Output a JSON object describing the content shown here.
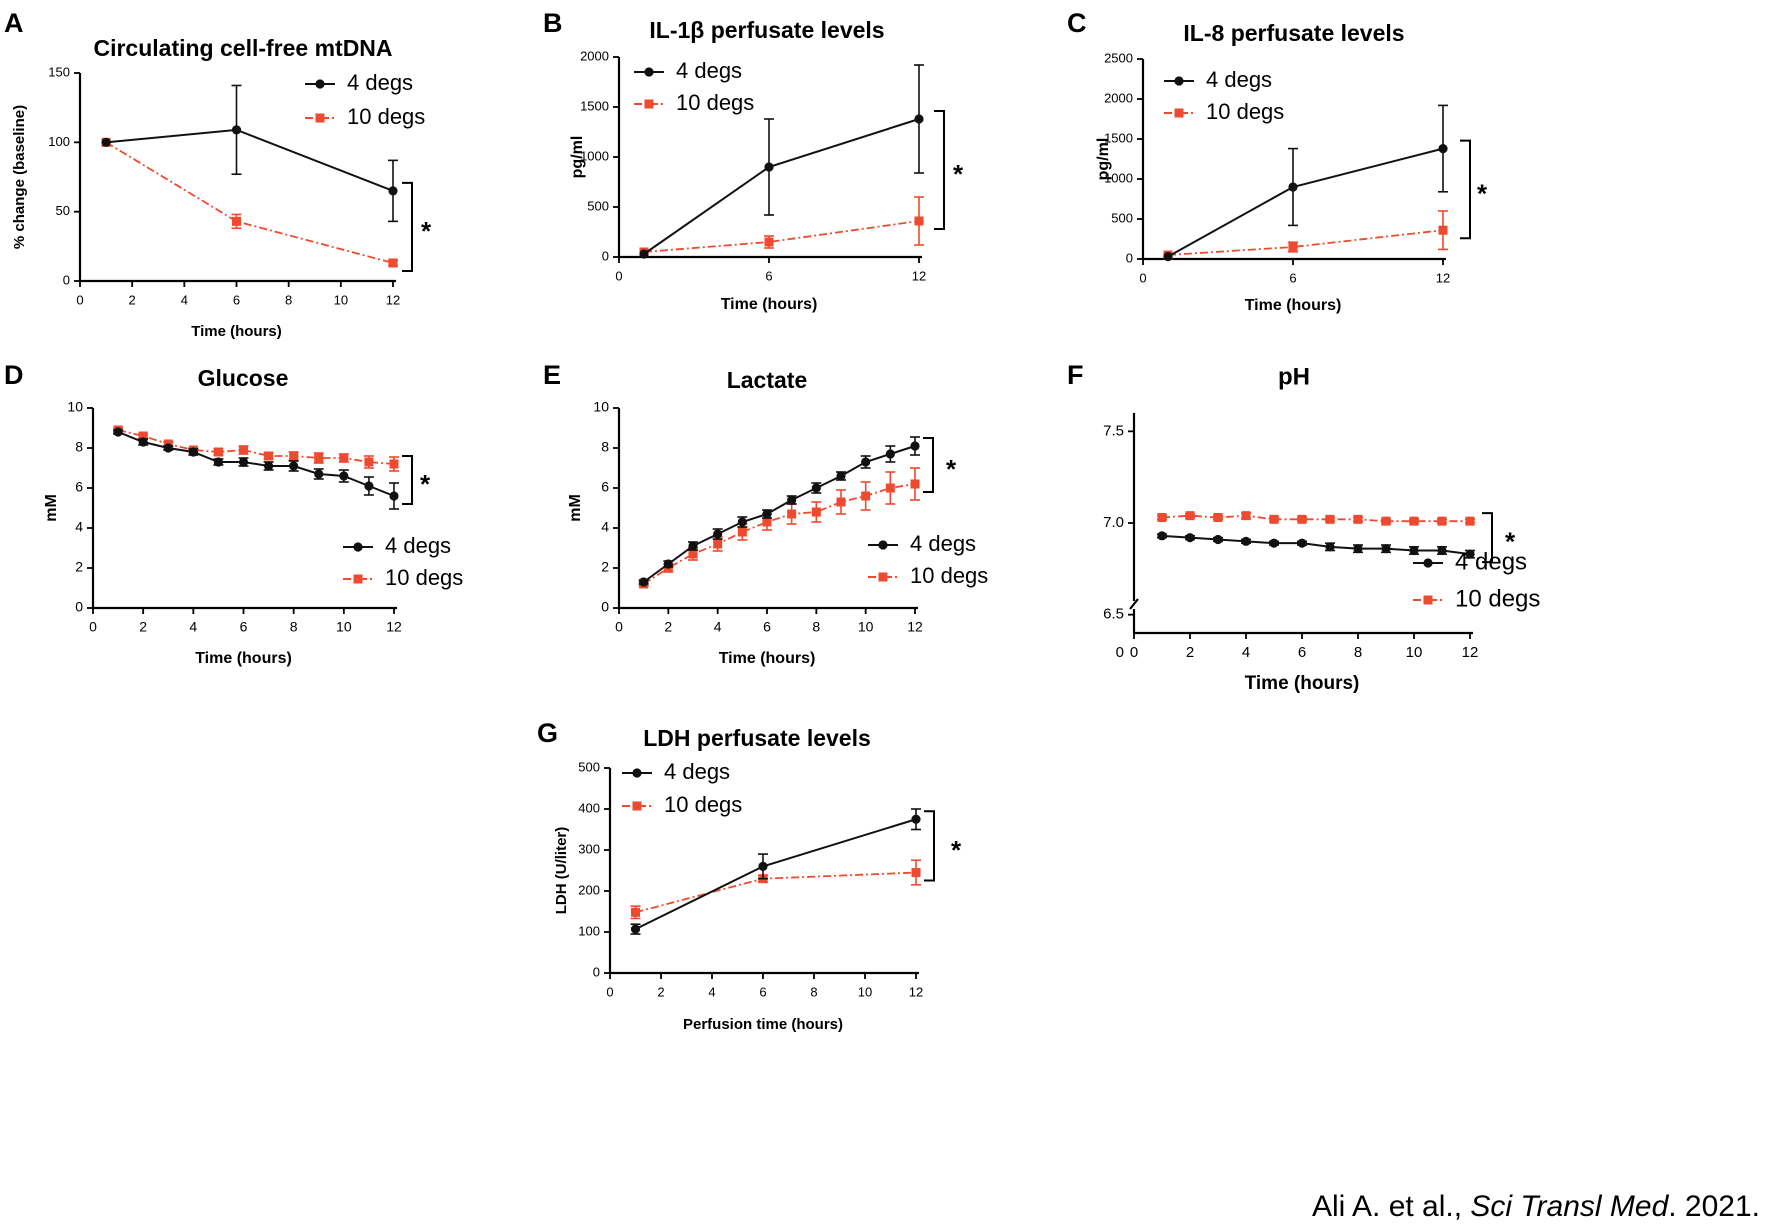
{
  "colors": {
    "series1": "#111111",
    "series2": "#ee4a2f",
    "axis": "#000000"
  },
  "citation": {
    "authors": "Ali A. et al., ",
    "journal": "Sci Transl Med",
    "year": ". 2021."
  },
  "chart_data": [
    {
      "panel": "A",
      "type": "line",
      "title": "Circulating cell-free mtDNA",
      "xlabel": "Time (hours)",
      "ylabel": "% change (baseline)",
      "xlim": [
        0,
        12
      ],
      "ylim": [
        0,
        150
      ],
      "xticks": [
        0,
        2,
        4,
        6,
        8,
        10,
        12
      ],
      "yticks": [
        0,
        50,
        100,
        150
      ],
      "legend": "top-right",
      "significance": "*",
      "series": [
        {
          "name": "4 degs",
          "x": [
            1,
            6,
            12
          ],
          "y": [
            100,
            109,
            65
          ],
          "err": [
            0,
            32,
            22
          ]
        },
        {
          "name": "10 degs",
          "x": [
            1,
            6,
            12
          ],
          "y": [
            100,
            43,
            13
          ],
          "err": [
            0,
            5,
            2
          ]
        }
      ]
    },
    {
      "panel": "B",
      "type": "line",
      "title": "IL-1β perfusate levels",
      "xlabel": "Time (hours)",
      "ylabel": "pg/ml",
      "xlim": [
        0,
        12
      ],
      "ylim": [
        0,
        2000
      ],
      "xticks": [
        0,
        6,
        12
      ],
      "yticks": [
        0,
        500,
        1000,
        1500,
        2000
      ],
      "legend": "top-left",
      "significance": "*",
      "series": [
        {
          "name": "4 degs",
          "x": [
            1,
            6,
            12
          ],
          "y": [
            30,
            900,
            1380
          ],
          "err": [
            0,
            480,
            540
          ]
        },
        {
          "name": "10 degs",
          "x": [
            1,
            6,
            12
          ],
          "y": [
            50,
            150,
            360
          ],
          "err": [
            0,
            60,
            240
          ]
        }
      ]
    },
    {
      "panel": "C",
      "type": "line",
      "title": "IL-8 perfusate levels",
      "xlabel": "Time (hours)",
      "ylabel": "pg/ml",
      "xlim": [
        0,
        12
      ],
      "ylim": [
        0,
        2500
      ],
      "xticks": [
        0,
        6,
        12
      ],
      "yticks": [
        0,
        500,
        1000,
        1500,
        2000,
        2500
      ],
      "legend": "top-left",
      "significance": "*",
      "series": [
        {
          "name": "4 degs",
          "x": [
            1,
            6,
            12
          ],
          "y": [
            30,
            900,
            1380
          ],
          "err": [
            0,
            480,
            540
          ]
        },
        {
          "name": "10 degs",
          "x": [
            1,
            6,
            12
          ],
          "y": [
            50,
            150,
            360
          ],
          "err": [
            0,
            60,
            240
          ]
        }
      ]
    },
    {
      "panel": "D",
      "type": "line",
      "title": "Glucose",
      "xlabel": "Time (hours)",
      "ylabel": "mM",
      "xlim": [
        0,
        12
      ],
      "ylim": [
        0,
        10
      ],
      "xticks": [
        0,
        2,
        4,
        6,
        8,
        10,
        12
      ],
      "yticks": [
        0,
        2,
        4,
        6,
        8,
        10
      ],
      "legend": "bottom-right",
      "significance": "*",
      "series": [
        {
          "name": "4 degs",
          "x": [
            1,
            2,
            3,
            4,
            5,
            6,
            7,
            8,
            9,
            10,
            11,
            12
          ],
          "y": [
            8.8,
            8.3,
            8.0,
            7.8,
            7.3,
            7.3,
            7.1,
            7.1,
            6.7,
            6.6,
            6.1,
            5.6
          ],
          "err": [
            0.1,
            0.15,
            0.1,
            0.15,
            0.15,
            0.2,
            0.2,
            0.25,
            0.25,
            0.3,
            0.45,
            0.65
          ]
        },
        {
          "name": "10 degs",
          "x": [
            1,
            2,
            3,
            4,
            5,
            6,
            7,
            8,
            9,
            10,
            11,
            12
          ],
          "y": [
            8.9,
            8.6,
            8.2,
            7.9,
            7.8,
            7.9,
            7.6,
            7.6,
            7.5,
            7.5,
            7.3,
            7.2
          ],
          "err": [
            0.1,
            0.1,
            0.1,
            0.1,
            0.15,
            0.2,
            0.15,
            0.2,
            0.25,
            0.2,
            0.3,
            0.35
          ]
        }
      ]
    },
    {
      "panel": "E",
      "type": "line",
      "title": "Lactate",
      "xlabel": "Time (hours)",
      "ylabel": "mM",
      "xlim": [
        0,
        12
      ],
      "ylim": [
        0,
        10
      ],
      "xticks": [
        0,
        2,
        4,
        6,
        8,
        10,
        12
      ],
      "yticks": [
        0,
        2,
        4,
        6,
        8,
        10
      ],
      "legend": "bottom-right",
      "significance": "*",
      "series": [
        {
          "name": "4 degs",
          "x": [
            1,
            2,
            3,
            4,
            5,
            6,
            7,
            8,
            9,
            10,
            11,
            12
          ],
          "y": [
            1.3,
            2.2,
            3.1,
            3.7,
            4.3,
            4.7,
            5.4,
            6.0,
            6.6,
            7.3,
            7.7,
            8.1
          ],
          "err": [
            0.1,
            0.15,
            0.2,
            0.25,
            0.25,
            0.2,
            0.2,
            0.25,
            0.2,
            0.3,
            0.4,
            0.45
          ]
        },
        {
          "name": "10 degs",
          "x": [
            1,
            2,
            3,
            4,
            5,
            6,
            7,
            8,
            9,
            10,
            11,
            12
          ],
          "y": [
            1.2,
            2.0,
            2.7,
            3.2,
            3.8,
            4.3,
            4.7,
            4.8,
            5.3,
            5.6,
            6.0,
            6.2
          ],
          "err": [
            0.1,
            0.2,
            0.3,
            0.35,
            0.4,
            0.4,
            0.5,
            0.5,
            0.6,
            0.7,
            0.8,
            0.8
          ]
        }
      ]
    },
    {
      "panel": "F",
      "type": "line",
      "title": "pH",
      "xlabel": "Time (hours)",
      "ylabel": "",
      "xlim": [
        0,
        12
      ],
      "ylim": [
        6.4,
        7.6
      ],
      "axis_break": true,
      "xticks": [
        0,
        2,
        4,
        6,
        8,
        10,
        12
      ],
      "yticks": [
        6.5,
        7.0,
        7.5
      ],
      "ytick_labels": [
        "6.5",
        "7.0",
        "7.5"
      ],
      "legend": "bottom-right",
      "significance": "*",
      "series": [
        {
          "name": "4 degs",
          "x": [
            1,
            2,
            3,
            4,
            5,
            6,
            7,
            8,
            9,
            10,
            11,
            12
          ],
          "y": [
            6.93,
            6.92,
            6.91,
            6.9,
            6.89,
            6.89,
            6.87,
            6.86,
            6.86,
            6.85,
            6.85,
            6.83
          ],
          "err": [
            0.01,
            0.01,
            0.01,
            0.01,
            0.01,
            0.01,
            0.02,
            0.02,
            0.02,
            0.02,
            0.02,
            0.02
          ]
        },
        {
          "name": "10 degs",
          "x": [
            1,
            2,
            3,
            4,
            5,
            6,
            7,
            8,
            9,
            10,
            11,
            12
          ],
          "y": [
            7.03,
            7.04,
            7.03,
            7.04,
            7.02,
            7.02,
            7.02,
            7.02,
            7.01,
            7.01,
            7.01,
            7.01
          ],
          "err": [
            0.01,
            0.01,
            0.01,
            0.015,
            0.01,
            0.01,
            0.01,
            0.01,
            0.01,
            0.01,
            0.01,
            0.01
          ]
        }
      ]
    },
    {
      "panel": "G",
      "type": "line",
      "title": "LDH perfusate levels",
      "xlabel": "Perfusion time (hours)",
      "ylabel": "LDH (U/liter)",
      "xlim": [
        0,
        12
      ],
      "ylim": [
        0,
        500
      ],
      "xticks": [
        0,
        2,
        4,
        6,
        8,
        10,
        12
      ],
      "yticks": [
        0,
        100,
        200,
        300,
        400,
        500
      ],
      "legend": "top-left",
      "significance": "*",
      "series": [
        {
          "name": "4 degs",
          "x": [
            1,
            6,
            12
          ],
          "y": [
            107,
            260,
            375
          ],
          "err": [
            12,
            30,
            25
          ]
        },
        {
          "name": "10 degs",
          "x": [
            1,
            6,
            12
          ],
          "y": [
            148,
            230,
            245
          ],
          "err": [
            15,
            8,
            30
          ]
        }
      ]
    }
  ]
}
